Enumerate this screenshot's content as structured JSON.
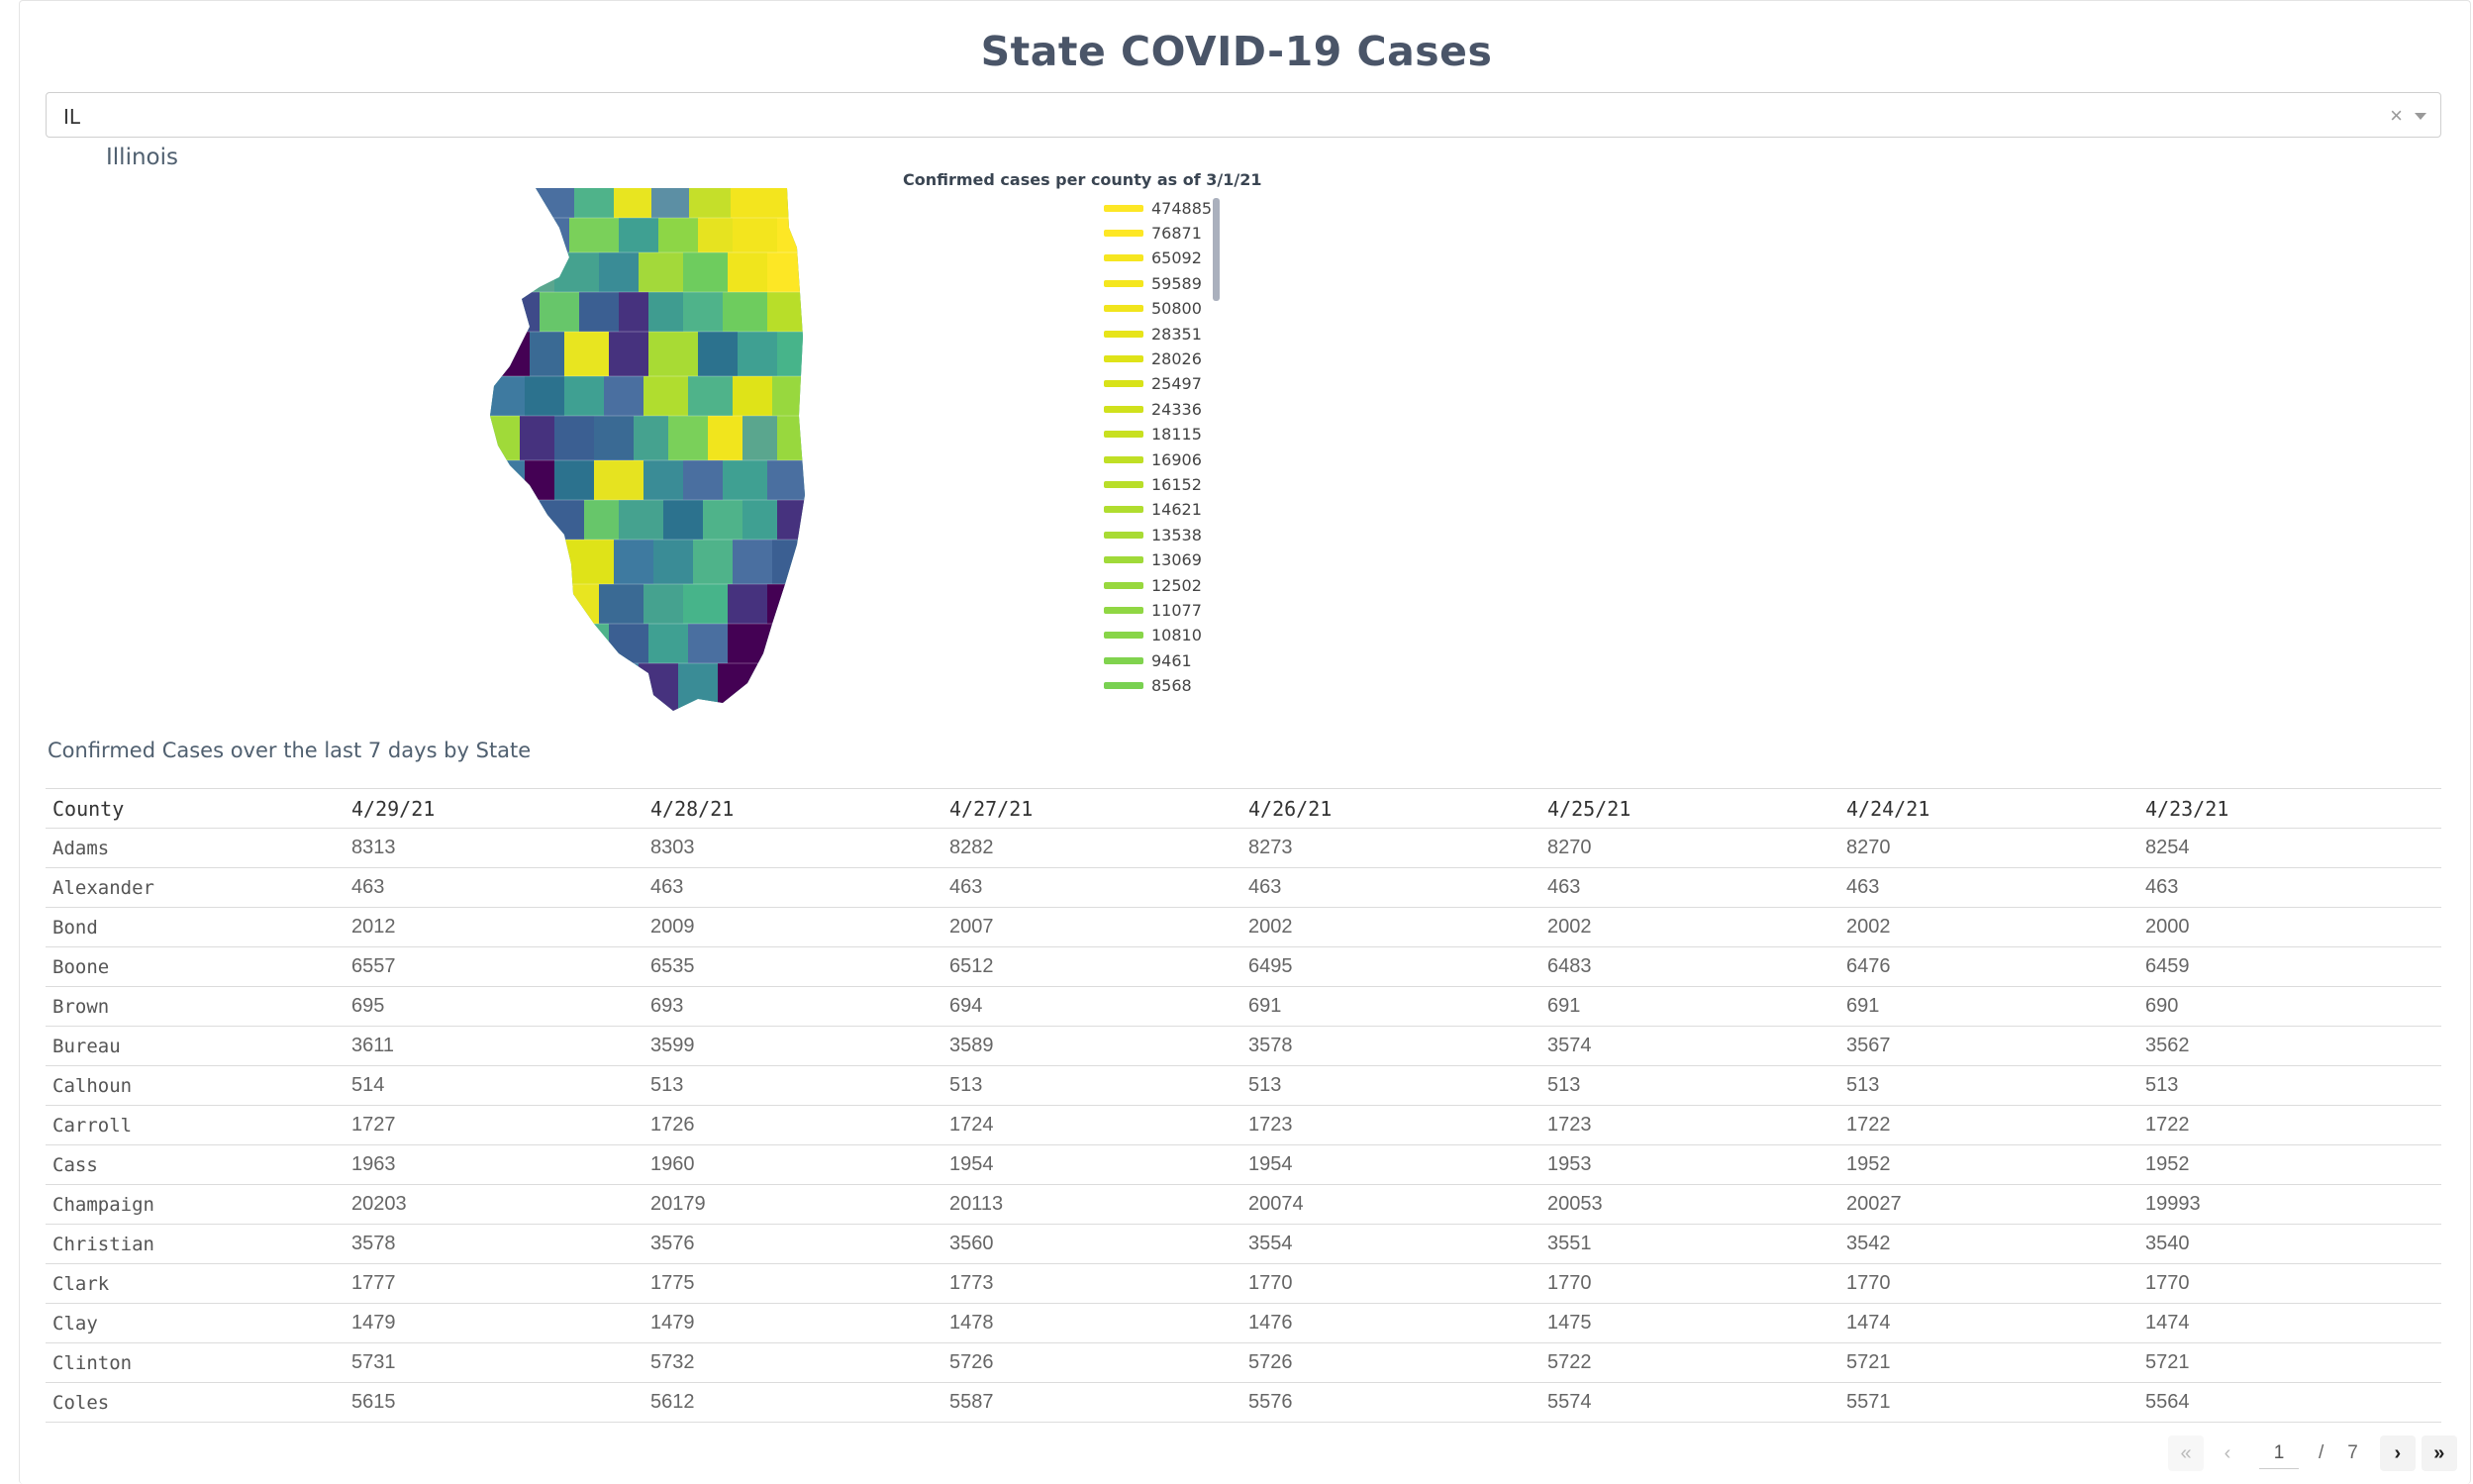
{
  "page": {
    "title": "State COVID-19 Cases"
  },
  "state_select": {
    "value": "IL",
    "clear_symbol": "×"
  },
  "map": {
    "state_name": "Illinois",
    "legend_title": "Confirmed cases per county as of 3/1/21",
    "legend_items": [
      {
        "label": "474885",
        "color": "#fde725"
      },
      {
        "label": "76871",
        "color": "#fde725"
      },
      {
        "label": "65092",
        "color": "#f6e620"
      },
      {
        "label": "59589",
        "color": "#f4e61e"
      },
      {
        "label": "50800",
        "color": "#f1e51d"
      },
      {
        "label": "28351",
        "color": "#e7e419"
      },
      {
        "label": "28026",
        "color": "#dfe318"
      },
      {
        "label": "25497",
        "color": "#d8e219"
      },
      {
        "label": "24336",
        "color": "#d0e11c"
      },
      {
        "label": "18115",
        "color": "#c8e020"
      },
      {
        "label": "16906",
        "color": "#c0df25"
      },
      {
        "label": "16152",
        "color": "#b8de29"
      },
      {
        "label": "14621",
        "color": "#b0dd2f"
      },
      {
        "label": "13538",
        "color": "#a8db34"
      },
      {
        "label": "13069",
        "color": "#a0da39"
      },
      {
        "label": "12502",
        "color": "#98d83e"
      },
      {
        "label": "11077",
        "color": "#90d743"
      },
      {
        "label": "10810",
        "color": "#88d548"
      },
      {
        "label": "9461",
        "color": "#80d34e"
      },
      {
        "label": "8568",
        "color": "#79d151"
      }
    ]
  },
  "table": {
    "title": "Confirmed Cases over the last 7 days by State",
    "columns": [
      "County",
      "4/29/21",
      "4/28/21",
      "4/27/21",
      "4/26/21",
      "4/25/21",
      "4/24/21",
      "4/23/21"
    ],
    "rows": [
      [
        "Adams",
        "8313",
        "8303",
        "8282",
        "8273",
        "8270",
        "8270",
        "8254"
      ],
      [
        "Alexander",
        "463",
        "463",
        "463",
        "463",
        "463",
        "463",
        "463"
      ],
      [
        "Bond",
        "2012",
        "2009",
        "2007",
        "2002",
        "2002",
        "2002",
        "2000"
      ],
      [
        "Boone",
        "6557",
        "6535",
        "6512",
        "6495",
        "6483",
        "6476",
        "6459"
      ],
      [
        "Brown",
        "695",
        "693",
        "694",
        "691",
        "691",
        "691",
        "690"
      ],
      [
        "Bureau",
        "3611",
        "3599",
        "3589",
        "3578",
        "3574",
        "3567",
        "3562"
      ],
      [
        "Calhoun",
        "514",
        "513",
        "513",
        "513",
        "513",
        "513",
        "513"
      ],
      [
        "Carroll",
        "1727",
        "1726",
        "1724",
        "1723",
        "1723",
        "1722",
        "1722"
      ],
      [
        "Cass",
        "1963",
        "1960",
        "1954",
        "1954",
        "1953",
        "1952",
        "1952"
      ],
      [
        "Champaign",
        "20203",
        "20179",
        "20113",
        "20074",
        "20053",
        "20027",
        "19993"
      ],
      [
        "Christian",
        "3578",
        "3576",
        "3560",
        "3554",
        "3551",
        "3542",
        "3540"
      ],
      [
        "Clark",
        "1777",
        "1775",
        "1773",
        "1770",
        "1770",
        "1770",
        "1770"
      ],
      [
        "Clay",
        "1479",
        "1479",
        "1478",
        "1476",
        "1475",
        "1474",
        "1474"
      ],
      [
        "Clinton",
        "5731",
        "5732",
        "5726",
        "5726",
        "5722",
        "5721",
        "5721"
      ],
      [
        "Coles",
        "5615",
        "5612",
        "5587",
        "5576",
        "5574",
        "5571",
        "5564"
      ]
    ]
  },
  "pagination": {
    "first_icon": "«",
    "prev_icon": "‹",
    "current_page": "1",
    "separator": "/",
    "total_pages": "7",
    "next_icon": "›",
    "last_icon": "»"
  }
}
